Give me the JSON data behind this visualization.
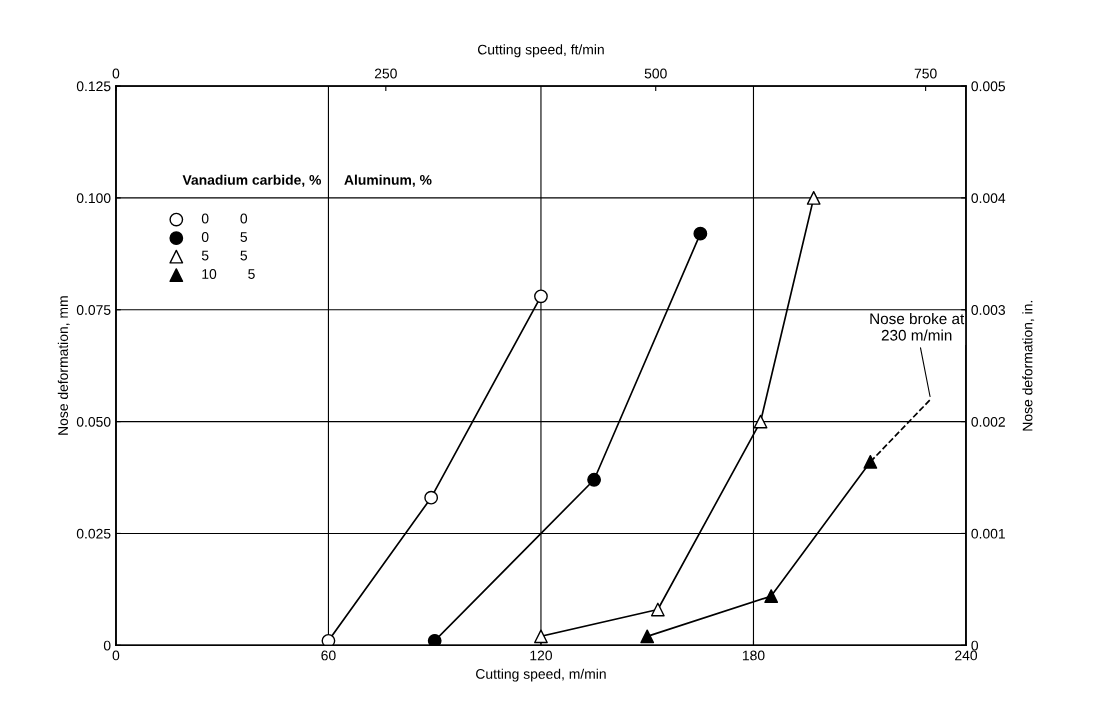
{
  "chart_data": {
    "type": "line",
    "xlabel": "Cutting speed, m/min",
    "ylabel": "Nose deformation, mm",
    "x2label": "Cutting speed, ft/min",
    "y2label": "Nose deformation, in.",
    "xlim": [
      0,
      240
    ],
    "xticks": [
      0,
      60,
      120,
      180,
      240
    ],
    "ylim": [
      0,
      0.125
    ],
    "yticks": [
      {
        "value": 0,
        "label": "0"
      },
      {
        "value": 0.025,
        "label": "0.025"
      },
      {
        "value": 0.05,
        "label": "0.050"
      },
      {
        "value": 0.075,
        "label": "0.075"
      },
      {
        "value": 0.1,
        "label": "0.100"
      },
      {
        "value": 0.125,
        "label": "0.125"
      }
    ],
    "x2lim": [
      0,
      787.4
    ],
    "x2ticks": [
      0,
      250,
      500,
      750
    ],
    "y2lim": [
      0,
      0.005
    ],
    "y2ticks": [
      0,
      0.001,
      0.002,
      0.003,
      0.004,
      0.005
    ],
    "grid": true,
    "legend": "top left",
    "annotations": [
      "Vanadium carbide, %",
      "Aluminum, %",
      {
        "text": "Nose broke at\n230 m/min",
        "x": 230,
        "y": 0.055
      }
    ],
    "series": [
      {
        "name": "0 0",
        "type": "scatter",
        "color": "#ffffff",
        "marker": "circle",
        "x": [
          60,
          89,
          120
        ],
        "values": [
          0.001,
          0.033,
          0.078
        ]
      },
      {
        "name": "0 5",
        "type": "scatter",
        "color": "#000000",
        "marker": "circle",
        "x": [
          90,
          135,
          165
        ],
        "values": [
          0.001,
          0.037,
          0.092
        ]
      },
      {
        "name": "5 5",
        "type": "scatter",
        "color": "#ffffff",
        "marker": "triangle",
        "x": [
          120,
          153,
          182,
          197
        ],
        "values": [
          0.002,
          0.008,
          0.05,
          0.1
        ]
      },
      {
        "name": "10 5",
        "type": "scatter",
        "color": "#000000",
        "marker": "triangle",
        "x": [
          150,
          185,
          213
        ],
        "values": [
          0.002,
          0.011,
          0.041
        ]
      },
      {
        "color": "#000000",
        "marker": "none",
        "x": [
          60,
          89,
          120
        ],
        "values": [
          0.001,
          0.033,
          0.078
        ]
      },
      {
        "color": "#000000",
        "marker": "none",
        "x": [
          90,
          135,
          165
        ],
        "values": [
          0.001,
          0.037,
          0.092
        ]
      },
      {
        "color": "#000000",
        "marker": "none",
        "x": [
          120,
          153,
          182,
          197
        ],
        "values": [
          0.002,
          0.008,
          0.05,
          0.1
        ]
      },
      {
        "color": "#000000",
        "marker": "none",
        "x": [
          150,
          185,
          213
        ],
        "values": [
          0.002,
          0.011,
          0.041
        ]
      },
      {
        "color": "#000000",
        "marker": "none",
        "line_style": "dashed",
        "x": [
          213,
          230
        ],
        "values": [
          0.041,
          0.055
        ]
      }
    ]
  }
}
